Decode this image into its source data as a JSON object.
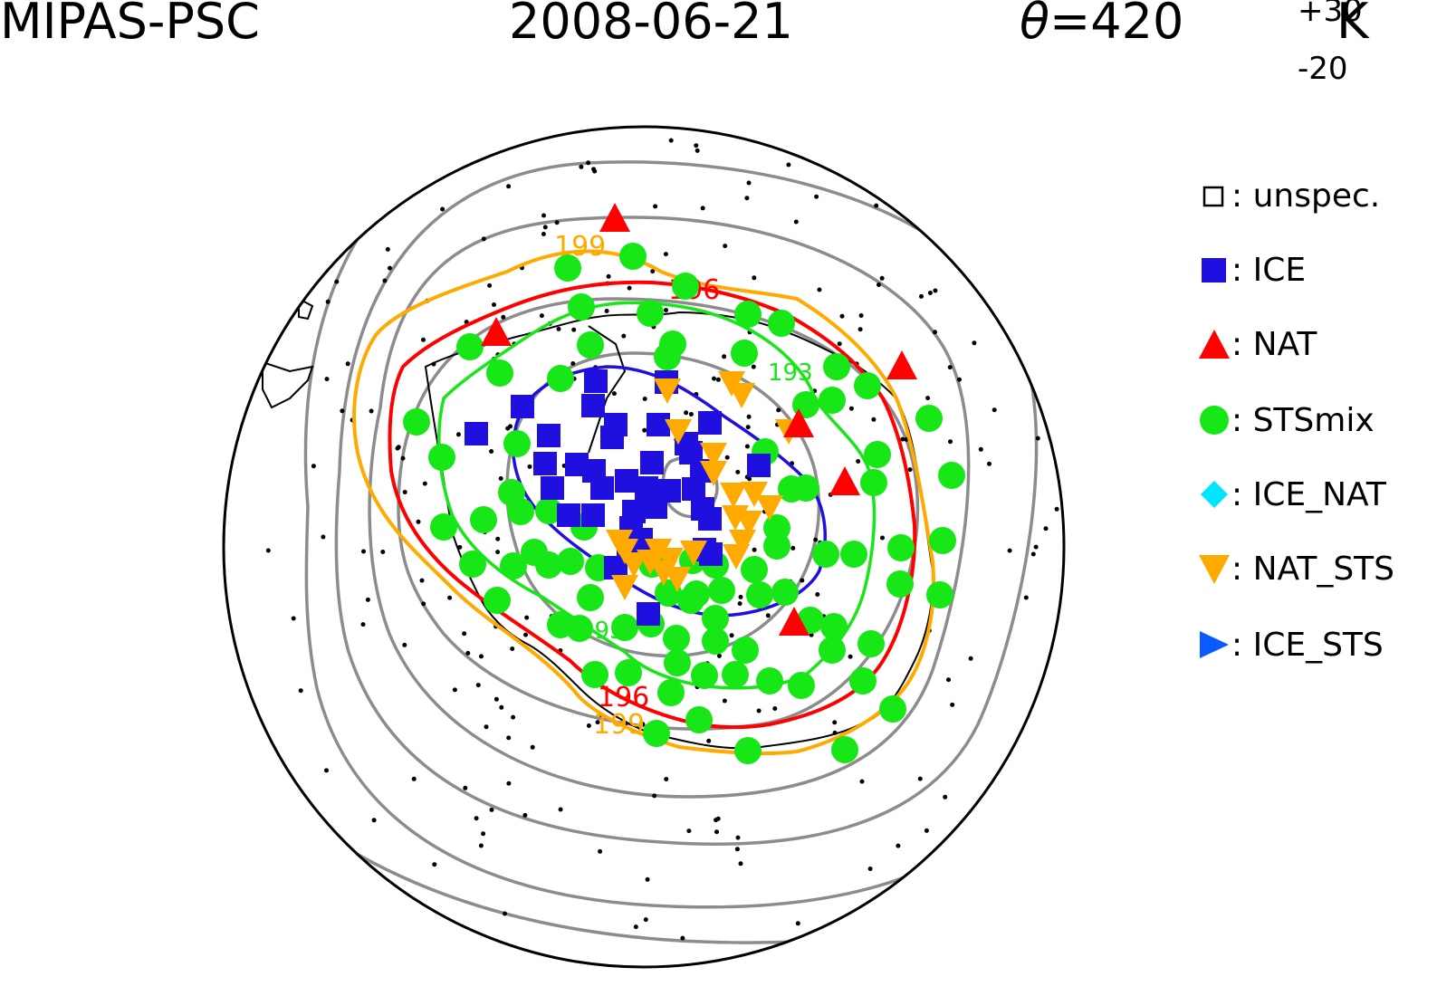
{
  "title": {
    "instrument": "MIPAS-PSC",
    "date": "2008-06-21",
    "theta_symbol": "θ",
    "theta_value": "=420",
    "theta_plus": "+30",
    "theta_minus": "-20",
    "theta_unit": "K"
  },
  "colors": {
    "ice": "#1f10e0",
    "nat": "#ff0000",
    "sts": "#17e617",
    "ice_nat": "#00e5ff",
    "nat_sts": "#ffaa00",
    "ice_sts": "#0a5aff",
    "contour_gray": "#8c8c8c",
    "contour_red": "#ff0000",
    "contour_orange": "#ffaa00",
    "contour_green": "#17e617",
    "contour_blue": "#1f10e0"
  },
  "legend": [
    {
      "key": "unspec",
      "label": ": unspec.",
      "icon": "open-square-icon",
      "color": "#000000"
    },
    {
      "key": "ice",
      "label": ": ICE",
      "icon": "square-icon",
      "color": "#1f10e0"
    },
    {
      "key": "nat",
      "label": ": NAT",
      "icon": "triangle-up-icon",
      "color": "#ff0000"
    },
    {
      "key": "sts",
      "label": ": STSmix",
      "icon": "circle-icon",
      "color": "#17e617"
    },
    {
      "key": "ice_nat",
      "label": ": ICE_NAT",
      "icon": "diamond-icon",
      "color": "#00e5ff"
    },
    {
      "key": "nat_sts",
      "label": ": NAT_STS",
      "icon": "triangle-down-icon",
      "color": "#ffaa00"
    },
    {
      "key": "ice_sts",
      "label": ": ICE_STS",
      "icon": "triangle-right-icon",
      "color": "#0a5aff"
    }
  ],
  "contour_labels": {
    "orange": "199",
    "red": "196",
    "green": "193"
  }
}
